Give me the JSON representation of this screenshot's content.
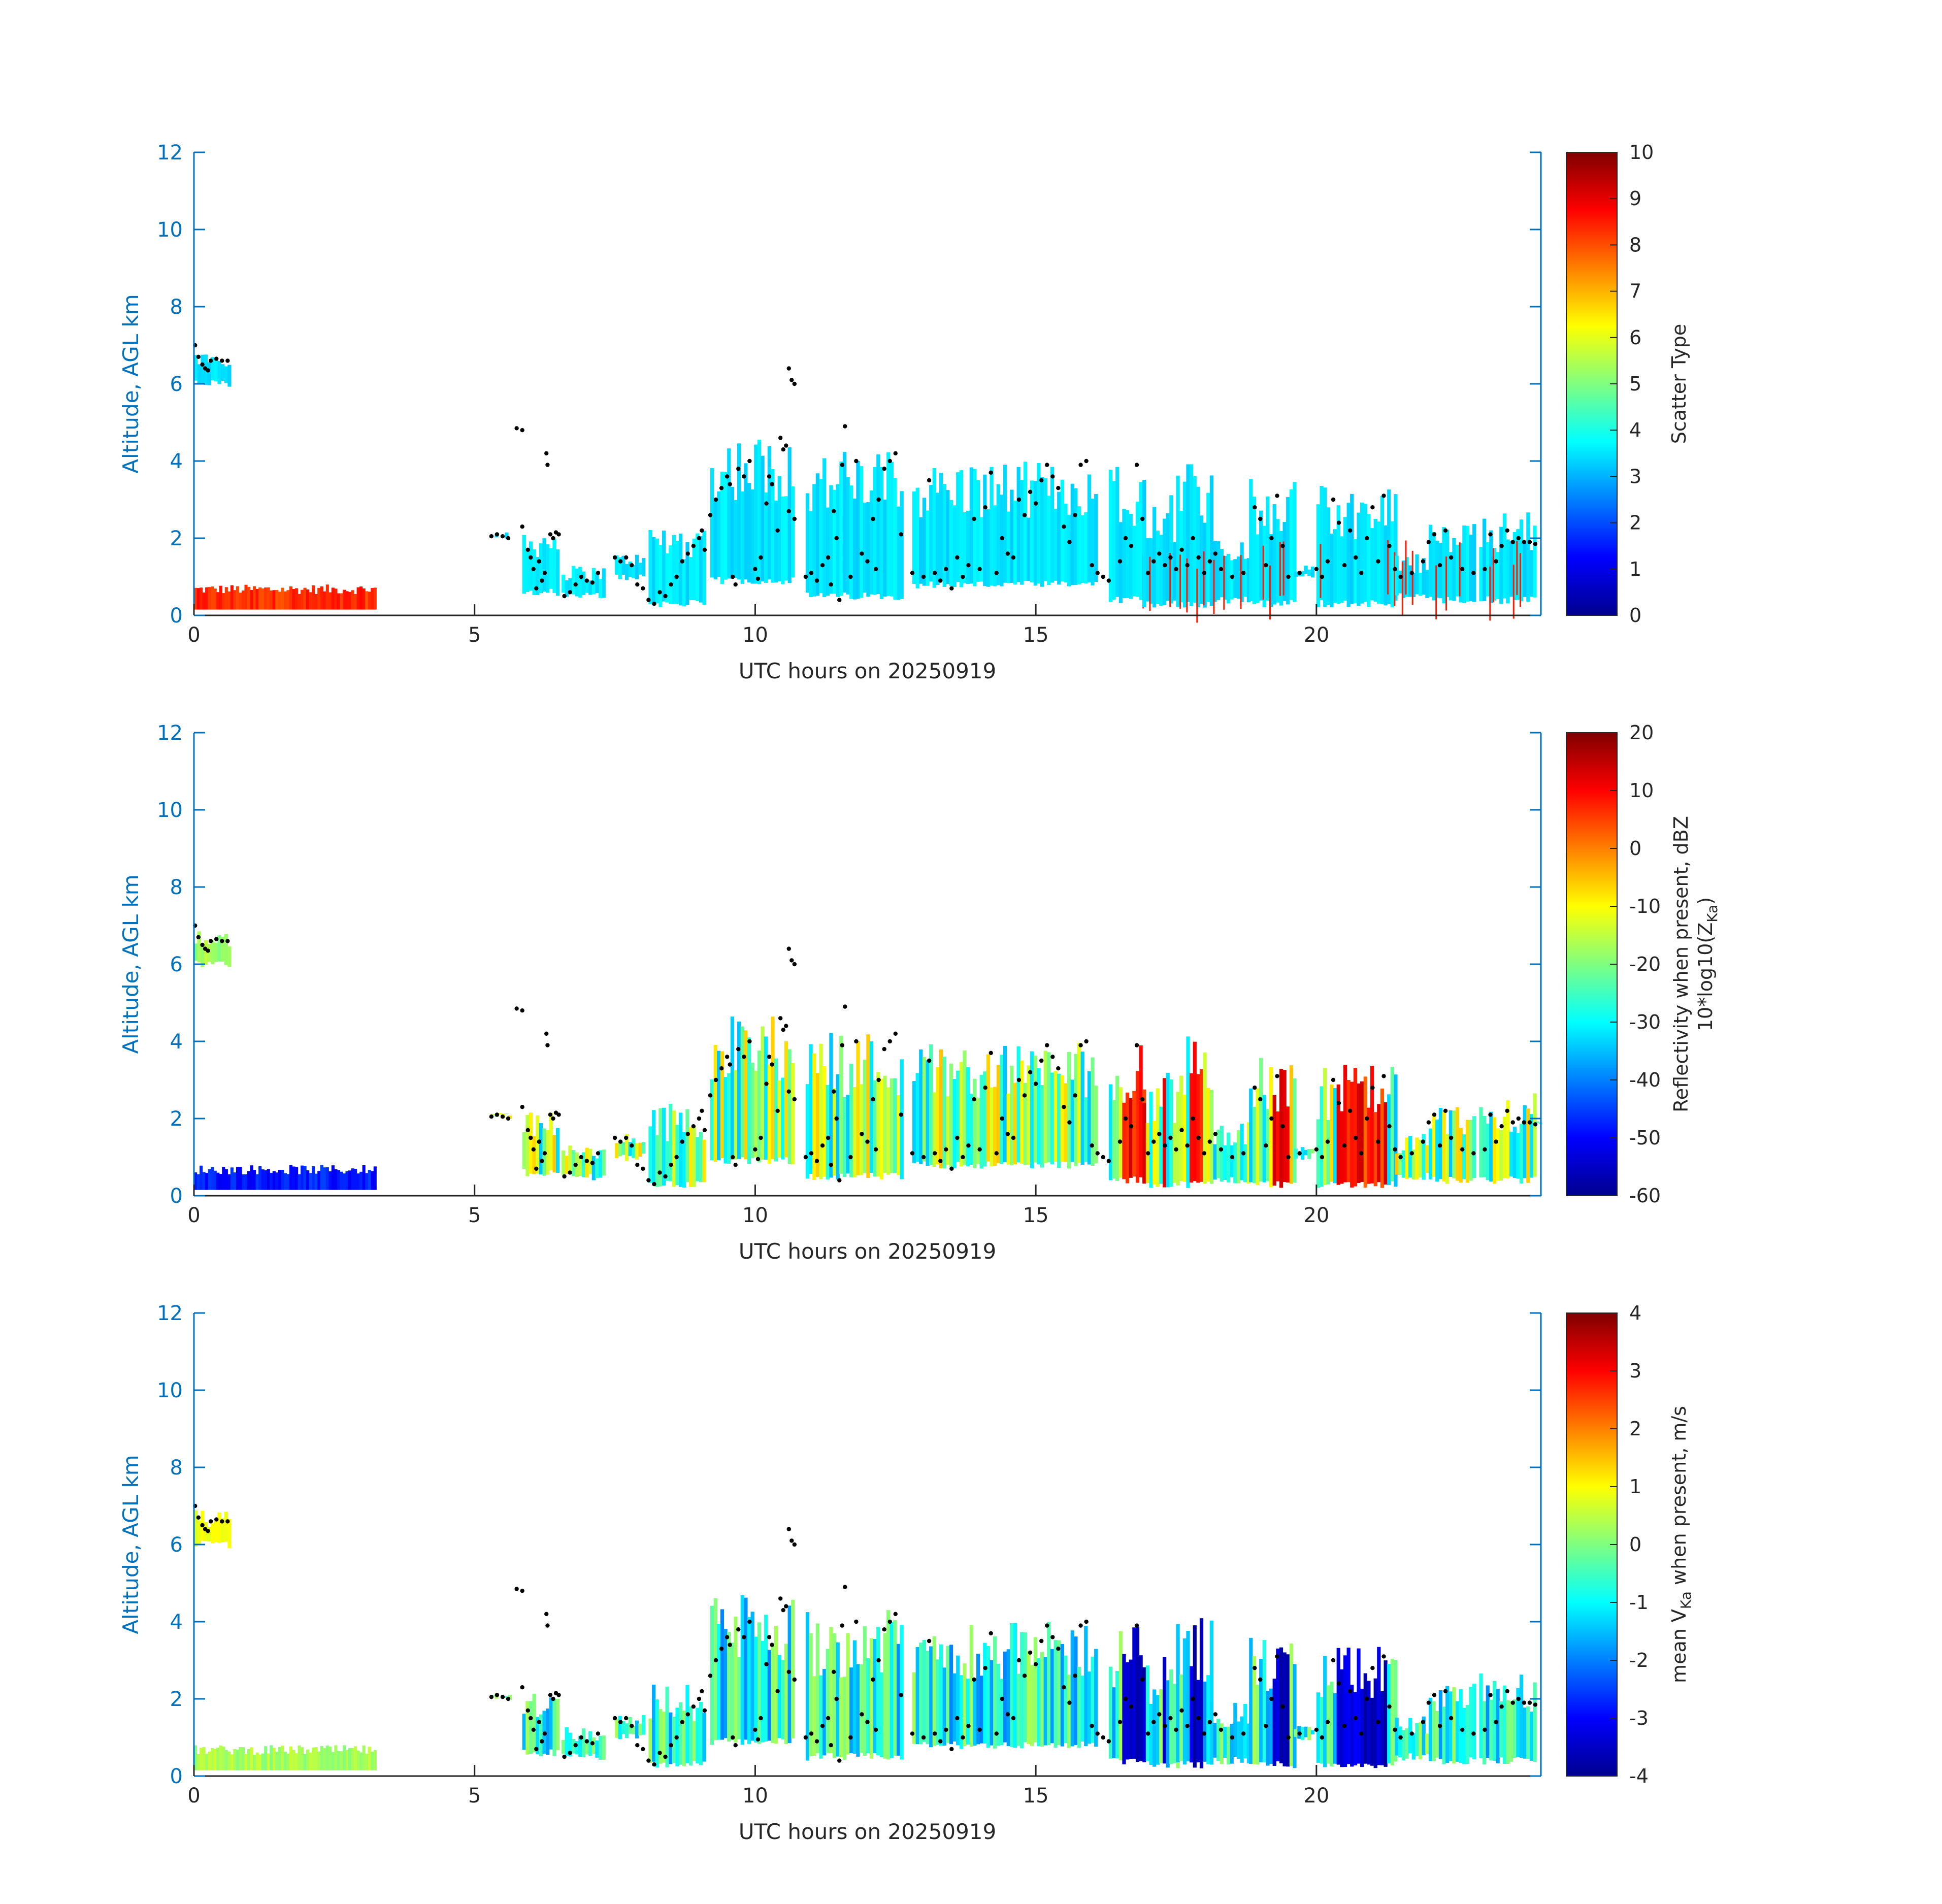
{
  "figure": {
    "accent_axis_color": "#0072BD",
    "text_color": "#262626",
    "colormap": "jet"
  },
  "chart_data": [
    {
      "type": "heatmap",
      "ylabel": "Altitude, AGL km",
      "xlabel": "UTC hours on 20250919",
      "xlim": [
        0,
        24
      ],
      "ylim": [
        0,
        12
      ],
      "xticks": [
        0,
        5,
        10,
        15,
        20
      ],
      "yticks": [
        0,
        2,
        4,
        6,
        8,
        10,
        12
      ],
      "colorbar": {
        "label": "Scatter Type",
        "label2": "",
        "range": [
          0,
          10
        ],
        "ticks": [
          0,
          1,
          2,
          3,
          4,
          5,
          6,
          7,
          8,
          9,
          10
        ]
      },
      "dominant_value": 3.5,
      "low_layer_value": 8.3
    },
    {
      "type": "heatmap",
      "ylabel": "Altitude, AGL km",
      "xlabel": "UTC hours on 20250919",
      "xlim": [
        0,
        24
      ],
      "ylim": [
        0,
        12
      ],
      "xticks": [
        0,
        5,
        10,
        15,
        20
      ],
      "yticks": [
        0,
        2,
        4,
        6,
        8,
        10,
        12
      ],
      "colorbar": {
        "label": "Reflectivity when present, dBZ",
        "label2": "10*log10(Z",
        "label2_sub": "Ka",
        "label2_end": ")",
        "range": [
          -60,
          20
        ],
        "ticks": [
          -60,
          -50,
          -40,
          -30,
          -20,
          -10,
          0,
          10,
          20
        ]
      },
      "dominant_value": -20,
      "low_layer_value": -48
    },
    {
      "type": "heatmap",
      "ylabel": "Altitude, AGL km",
      "xlabel": "UTC hours on 20250919",
      "xlim": [
        0,
        24
      ],
      "ylim": [
        0,
        12
      ],
      "xticks": [
        0,
        5,
        10,
        15,
        20
      ],
      "yticks": [
        0,
        2,
        4,
        6,
        8,
        10,
        12
      ],
      "colorbar": {
        "label_pre": "mean V",
        "label_sub": "Ka",
        "label_post": " when present, m/s",
        "range": [
          -4,
          4
        ],
        "ticks": [
          -4,
          -3,
          -2,
          -1,
          0,
          1,
          2,
          3,
          4
        ]
      },
      "dominant_value": -0.8,
      "low_layer_value": 0.3
    }
  ],
  "cloud_base_points": [
    [
      0.02,
      7.0
    ],
    [
      0.08,
      6.7
    ],
    [
      0.15,
      6.5
    ],
    [
      0.2,
      6.4
    ],
    [
      0.25,
      6.35
    ],
    [
      0.3,
      6.6
    ],
    [
      0.4,
      6.65
    ],
    [
      0.5,
      6.6
    ],
    [
      0.6,
      6.6
    ],
    [
      5.3,
      2.05
    ],
    [
      5.4,
      2.1
    ],
    [
      5.5,
      2.05
    ],
    [
      5.6,
      2.0
    ],
    [
      5.75,
      4.85
    ],
    [
      5.85,
      4.8
    ],
    [
      5.85,
      2.3
    ],
    [
      5.95,
      1.7
    ],
    [
      6.0,
      1.5
    ],
    [
      6.05,
      1.2
    ],
    [
      6.1,
      0.7
    ],
    [
      6.15,
      1.4
    ],
    [
      6.2,
      0.9
    ],
    [
      6.25,
      1.1
    ],
    [
      6.28,
      4.2
    ],
    [
      6.3,
      3.9
    ],
    [
      6.35,
      2.1
    ],
    [
      6.4,
      2.0
    ],
    [
      6.45,
      2.15
    ],
    [
      6.5,
      2.1
    ],
    [
      6.6,
      0.5
    ],
    [
      6.7,
      0.6
    ],
    [
      6.8,
      0.8
    ],
    [
      6.9,
      1.0
    ],
    [
      7.0,
      0.9
    ],
    [
      7.1,
      0.85
    ],
    [
      7.2,
      1.1
    ],
    [
      7.5,
      1.5
    ],
    [
      7.6,
      1.4
    ],
    [
      7.7,
      1.5
    ],
    [
      7.8,
      1.3
    ],
    [
      7.9,
      0.8
    ],
    [
      8.0,
      0.7
    ],
    [
      8.1,
      0.4
    ],
    [
      8.2,
      0.3
    ],
    [
      8.3,
      0.6
    ],
    [
      8.4,
      0.5
    ],
    [
      8.5,
      0.8
    ],
    [
      8.6,
      1.0
    ],
    [
      8.7,
      1.4
    ],
    [
      8.8,
      1.6
    ],
    [
      8.9,
      1.8
    ],
    [
      9.0,
      2.0
    ],
    [
      9.05,
      2.2
    ],
    [
      9.1,
      1.7
    ],
    [
      9.2,
      2.6
    ],
    [
      9.3,
      3.0
    ],
    [
      9.4,
      3.3
    ],
    [
      9.5,
      3.6
    ],
    [
      9.55,
      3.4
    ],
    [
      9.6,
      1.0
    ],
    [
      9.65,
      0.8
    ],
    [
      9.7,
      3.8
    ],
    [
      9.8,
      3.6
    ],
    [
      9.9,
      4.0
    ],
    [
      10.0,
      1.2
    ],
    [
      10.05,
      0.95
    ],
    [
      10.1,
      1.5
    ],
    [
      10.2,
      2.9
    ],
    [
      10.25,
      3.6
    ],
    [
      10.3,
      3.4
    ],
    [
      10.4,
      2.2
    ],
    [
      10.45,
      4.6
    ],
    [
      10.5,
      4.3
    ],
    [
      10.55,
      4.4
    ],
    [
      10.6,
      6.4
    ],
    [
      10.65,
      6.1
    ],
    [
      10.7,
      6.0
    ],
    [
      10.6,
      2.7
    ],
    [
      10.7,
      2.5
    ],
    [
      10.9,
      1.0
    ],
    [
      11.0,
      1.1
    ],
    [
      11.1,
      0.9
    ],
    [
      11.2,
      1.3
    ],
    [
      11.3,
      1.5
    ],
    [
      11.35,
      0.8
    ],
    [
      11.4,
      2.7
    ],
    [
      11.45,
      2.0
    ],
    [
      11.5,
      0.4
    ],
    [
      11.55,
      3.9
    ],
    [
      11.6,
      4.9
    ],
    [
      11.7,
      1.0
    ],
    [
      11.8,
      4.0
    ],
    [
      11.9,
      1.6
    ],
    [
      12.0,
      1.4
    ],
    [
      12.1,
      2.5
    ],
    [
      12.15,
      1.2
    ],
    [
      12.2,
      3.0
    ],
    [
      12.3,
      3.8
    ],
    [
      12.4,
      4.0
    ],
    [
      12.5,
      4.2
    ],
    [
      12.6,
      2.1
    ],
    [
      12.8,
      1.1
    ],
    [
      13.0,
      1.0
    ],
    [
      13.1,
      3.5
    ],
    [
      13.2,
      1.1
    ],
    [
      13.3,
      0.9
    ],
    [
      13.4,
      1.2
    ],
    [
      13.5,
      0.7
    ],
    [
      13.6,
      1.5
    ],
    [
      13.7,
      1.0
    ],
    [
      13.8,
      1.3
    ],
    [
      13.9,
      2.5
    ],
    [
      14.0,
      1.2
    ],
    [
      14.1,
      2.8
    ],
    [
      14.2,
      3.7
    ],
    [
      14.3,
      1.1
    ],
    [
      14.4,
      2.0
    ],
    [
      14.5,
      1.6
    ],
    [
      14.6,
      1.5
    ],
    [
      14.7,
      3.0
    ],
    [
      14.8,
      2.6
    ],
    [
      14.9,
      3.2
    ],
    [
      15.0,
      2.9
    ],
    [
      15.1,
      3.5
    ],
    [
      15.2,
      3.9
    ],
    [
      15.3,
      3.6
    ],
    [
      15.4,
      3.3
    ],
    [
      15.5,
      2.3
    ],
    [
      15.6,
      1.9
    ],
    [
      15.7,
      2.6
    ],
    [
      15.8,
      3.9
    ],
    [
      15.9,
      4.0
    ],
    [
      16.0,
      1.3
    ],
    [
      16.1,
      1.1
    ],
    [
      16.2,
      1.0
    ],
    [
      16.3,
      0.9
    ],
    [
      16.5,
      1.4
    ],
    [
      16.6,
      2.0
    ],
    [
      16.7,
      1.8
    ],
    [
      16.8,
      3.9
    ],
    [
      16.9,
      2.5
    ],
    [
      17.0,
      1.1
    ],
    [
      17.1,
      1.4
    ],
    [
      17.2,
      1.6
    ],
    [
      17.3,
      1.3
    ],
    [
      17.4,
      1.5
    ],
    [
      17.5,
      1.2
    ],
    [
      17.6,
      1.7
    ],
    [
      17.7,
      1.3
    ],
    [
      17.8,
      2.0
    ],
    [
      17.9,
      1.5
    ],
    [
      18.0,
      1.1
    ],
    [
      18.1,
      1.4
    ],
    [
      18.2,
      1.6
    ],
    [
      18.3,
      1.2
    ],
    [
      18.5,
      1.0
    ],
    [
      18.7,
      1.1
    ],
    [
      18.9,
      2.8
    ],
    [
      19.0,
      2.5
    ],
    [
      19.1,
      1.3
    ],
    [
      19.2,
      2.0
    ],
    [
      19.3,
      3.1
    ],
    [
      19.4,
      1.8
    ],
    [
      19.5,
      1.0
    ],
    [
      19.7,
      1.1
    ],
    [
      20.0,
      1.2
    ],
    [
      20.1,
      1.0
    ],
    [
      20.2,
      1.4
    ],
    [
      20.3,
      3.0
    ],
    [
      20.4,
      2.4
    ],
    [
      20.5,
      1.3
    ],
    [
      20.6,
      2.2
    ],
    [
      20.7,
      1.5
    ],
    [
      20.8,
      1.1
    ],
    [
      20.9,
      2.0
    ],
    [
      21.0,
      2.8
    ],
    [
      21.1,
      1.4
    ],
    [
      21.2,
      3.1
    ],
    [
      21.3,
      1.8
    ],
    [
      21.4,
      1.2
    ],
    [
      21.5,
      1.0
    ],
    [
      21.7,
      1.1
    ],
    [
      21.9,
      1.4
    ],
    [
      22.0,
      1.9
    ],
    [
      22.1,
      2.1
    ],
    [
      22.2,
      1.3
    ],
    [
      22.3,
      2.2
    ],
    [
      22.4,
      1.5
    ],
    [
      22.6,
      1.2
    ],
    [
      22.8,
      1.1
    ],
    [
      23.0,
      1.2
    ],
    [
      23.1,
      2.1
    ],
    [
      23.2,
      1.4
    ],
    [
      23.3,
      1.8
    ],
    [
      23.4,
      2.2
    ],
    [
      23.5,
      1.9
    ],
    [
      23.6,
      2.0
    ],
    [
      23.7,
      1.9
    ],
    [
      23.8,
      1.9
    ],
    [
      23.9,
      1.85
    ]
  ]
}
